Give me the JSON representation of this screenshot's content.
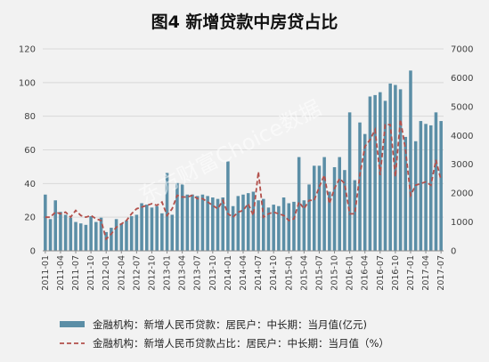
{
  "chart_data": {
    "type": "bar",
    "title": "图4  新增贷款中房贷占比",
    "watermark": "东方财富Choice数据",
    "background": "#f2f2f2",
    "bar_color": "#5b8ea6",
    "line_color": "#b3504b",
    "categories": [
      "2011-01",
      "2011-02",
      "2011-03",
      "2011-04",
      "2011-05",
      "2011-06",
      "2011-07",
      "2011-08",
      "2011-09",
      "2011-10",
      "2011-11",
      "2011-12",
      "2012-01",
      "2012-02",
      "2012-03",
      "2012-04",
      "2012-05",
      "2012-06",
      "2012-07",
      "2012-08",
      "2012-09",
      "2012-10",
      "2012-11",
      "2012-12",
      "2013-01",
      "2013-02",
      "2013-03",
      "2013-04",
      "2013-05",
      "2013-06",
      "2013-07",
      "2013-08",
      "2013-09",
      "2013-10",
      "2013-11",
      "2013-12",
      "2014-01",
      "2014-02",
      "2014-03",
      "2014-04",
      "2014-05",
      "2014-06",
      "2014-07",
      "2014-08",
      "2014-09",
      "2014-10",
      "2014-11",
      "2014-12",
      "2015-01",
      "2015-02",
      "2015-03",
      "2015-04",
      "2015-05",
      "2015-06",
      "2015-07",
      "2015-08",
      "2015-09",
      "2015-10",
      "2015-11",
      "2015-12",
      "2016-01",
      "2016-02",
      "2016-03",
      "2016-04",
      "2016-05",
      "2016-06",
      "2016-07",
      "2016-08",
      "2016-09",
      "2016-10",
      "2016-11",
      "2016-12",
      "2017-01",
      "2017-02",
      "2017-03",
      "2017-04",
      "2017-05",
      "2017-06",
      "2017-07"
    ],
    "xtick_labels": [
      "2011-01",
      "2011-04",
      "2011-07",
      "2011-10",
      "2012-01",
      "2012-04",
      "2012-07",
      "2012-10",
      "2013-01",
      "2013-04",
      "2013-07",
      "2013-10",
      "2014-01",
      "2014-04",
      "2014-07",
      "2014-10",
      "2015-01",
      "2015-04",
      "2015-07",
      "2015-10",
      "2016-01",
      "2016-04",
      "2016-07",
      "2016-10",
      "2017-01",
      "2017-04",
      "2017-07"
    ],
    "y_left": {
      "min": 0,
      "max": 120,
      "ticks": [
        0,
        20,
        40,
        60,
        80,
        100,
        120
      ]
    },
    "y_right": {
      "min": 0,
      "max": 7000,
      "ticks": [
        0,
        1000,
        2000,
        3000,
        4000,
        5000,
        6000,
        7000
      ]
    },
    "grid": true,
    "legend_position": "bottom",
    "series": [
      {
        "name": "金融机构：新增人民币贷款：居民户：中长期：当月值(亿元)",
        "type": "bar",
        "axis": "right",
        "values": [
          1950,
          1100,
          1750,
          1350,
          1250,
          1150,
          1000,
          950,
          900,
          1200,
          1000,
          1150,
          650,
          800,
          1100,
          950,
          1050,
          1200,
          1250,
          1650,
          1600,
          1500,
          1550,
          1300,
          2700,
          1250,
          2350,
          2300,
          1950,
          1950,
          1900,
          1950,
          1900,
          1850,
          1800,
          1850,
          3100,
          1550,
          1900,
          1950,
          2000,
          2050,
          1750,
          1800,
          1500,
          1600,
          1550,
          1850,
          1650,
          1700,
          3250,
          1750,
          2300,
          2950,
          2950,
          3250,
          2050,
          2900,
          3250,
          2800,
          4800,
          2450,
          4450,
          4050,
          5350,
          5400,
          5500,
          5200,
          5800,
          5750,
          5600,
          3950,
          6250,
          3800,
          4500,
          4400,
          4350,
          4800,
          4500
        ]
      },
      {
        "name": "金融机构：新增人民币贷款占比：居民户：中长期：当月值（%）",
        "type": "line",
        "axis": "left",
        "values": [
          20,
          20,
          23,
          22,
          23,
          20,
          24,
          21,
          20,
          21,
          19,
          18,
          7,
          10,
          14,
          16,
          18,
          22,
          25,
          26,
          27,
          28,
          27,
          29,
          21,
          25,
          33,
          32,
          32,
          33,
          31,
          31,
          29,
          27,
          25,
          30,
          22,
          20,
          23,
          24,
          28,
          21,
          47,
          20,
          22,
          23,
          22,
          21,
          18,
          19,
          29,
          25,
          30,
          30,
          38,
          45,
          28,
          37,
          43,
          40,
          22,
          22,
          45,
          62,
          66,
          72,
          45,
          75,
          75,
          44,
          78,
          60,
          33,
          39,
          40,
          41,
          39,
          54,
          42
        ]
      }
    ]
  }
}
